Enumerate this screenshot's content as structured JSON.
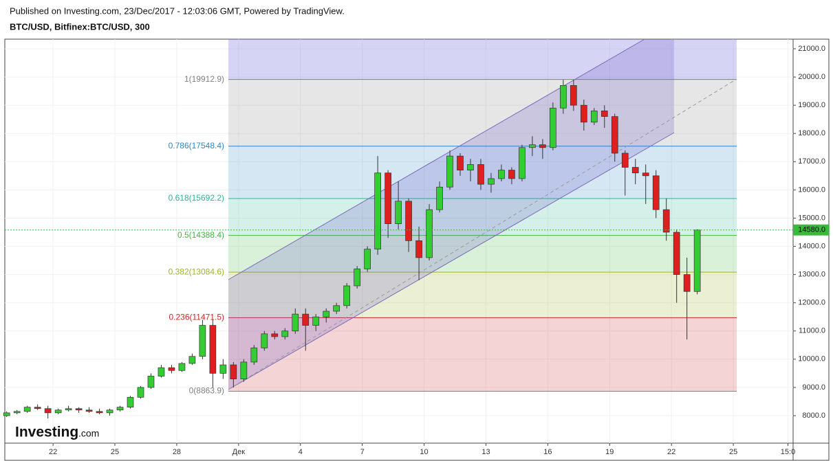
{
  "header": {
    "published": "Published on Investing.com, 23/Dec/2017 - 12:03:06 GMT, Powered by TradingView.",
    "symbol": "BTC/USD, Bitfinex:BTC/USD, 300"
  },
  "logo": {
    "brand": "Investing",
    "suffix": ".com"
  },
  "chart_data": {
    "type": "candlestick",
    "up_color": "#33cc33",
    "down_color": "#dd1f1f",
    "grid": true,
    "x": [
      19.75,
      20.25,
      20.75,
      21.25,
      21.75,
      22.25,
      22.75,
      23.25,
      23.75,
      24.25,
      24.75,
      25.25,
      25.75,
      26.25,
      26.75,
      27.25,
      27.75,
      28.25,
      28.75,
      29.25,
      29.75,
      30.25,
      30.75,
      31.25,
      31.75,
      32.25,
      32.75,
      33.25,
      33.75,
      34.25,
      34.75,
      35.25,
      35.75,
      36.25,
      36.75,
      37.25,
      37.75,
      38.25,
      38.75,
      39.25,
      39.75,
      40.25,
      40.75,
      41.25,
      41.75,
      42.25,
      42.75,
      43.25,
      43.75,
      44.25,
      44.75,
      45.25,
      45.75,
      46.25,
      46.75,
      47.25,
      47.75,
      48.25,
      48.75,
      49.25,
      49.75,
      50.25,
      50.75,
      51.25,
      51.75,
      52.25,
      52.75,
      53.25
    ],
    "open": [
      8000,
      8100,
      8150,
      8300,
      8250,
      8100,
      8200,
      8250,
      8200,
      8150,
      8100,
      8200,
      8300,
      8650,
      9000,
      9400,
      9700,
      9600,
      9850,
      10100,
      11200,
      9500,
      9800,
      9300,
      9900,
      10400,
      10900,
      10800,
      11000,
      11600,
      11200,
      11500,
      11700,
      11900,
      12600,
      13200,
      13900,
      16600,
      14800,
      15600,
      14200,
      13600,
      15300,
      16100,
      17200,
      16700,
      16900,
      16200,
      16400,
      16700,
      16400,
      17500,
      17600,
      17500,
      18900,
      19700,
      19000,
      18400,
      18800,
      18600,
      17300,
      16800,
      16600,
      16500,
      15300,
      14500,
      13000,
      12400
    ],
    "high": [
      8150,
      8200,
      8350,
      8400,
      8350,
      8250,
      8350,
      8300,
      8300,
      8250,
      8250,
      8350,
      8700,
      9050,
      9500,
      9800,
      9800,
      9900,
      10200,
      11400,
      11400,
      10000,
      9900,
      10000,
      10500,
      11000,
      11000,
      11100,
      11800,
      11800,
      11600,
      11800,
      12000,
      12700,
      13300,
      14000,
      17200,
      16700,
      16300,
      15700,
      14700,
      15500,
      16300,
      17400,
      17300,
      17100,
      17100,
      16600,
      16900,
      16800,
      17600,
      17900,
      17800,
      19100,
      19900,
      19900,
      19200,
      18900,
      19000,
      18700,
      17400,
      17100,
      16900,
      16700,
      15700,
      14600,
      13600,
      14600
    ],
    "low": [
      7950,
      8050,
      8100,
      8200,
      7900,
      8050,
      8150,
      8100,
      8100,
      8050,
      8000,
      8150,
      8250,
      8600,
      8950,
      9350,
      9500,
      9550,
      9800,
      10000,
      9000,
      9300,
      9000,
      9200,
      9800,
      10300,
      10700,
      10700,
      10900,
      10300,
      11000,
      11300,
      11600,
      11800,
      12500,
      13100,
      13700,
      14300,
      14600,
      13800,
      12800,
      13500,
      15200,
      16000,
      16500,
      16300,
      16000,
      15900,
      16300,
      16200,
      16300,
      17200,
      17100,
      17400,
      18700,
      18800,
      18100,
      18300,
      18200,
      17000,
      15800,
      16200,
      15500,
      15000,
      14200,
      12000,
      10700,
      12300
    ],
    "close": [
      8100,
      8150,
      8300,
      8250,
      8100,
      8200,
      8250,
      8200,
      8150,
      8100,
      8200,
      8300,
      8650,
      9000,
      9400,
      9700,
      9600,
      9850,
      10100,
      11200,
      9500,
      9800,
      9300,
      9900,
      10400,
      10900,
      10800,
      11000,
      11600,
      11200,
      11500,
      11700,
      11900,
      12600,
      13200,
      13900,
      16600,
      14800,
      15600,
      14200,
      13600,
      15300,
      16100,
      17200,
      16700,
      16900,
      16200,
      16400,
      16700,
      16400,
      17500,
      17600,
      17500,
      18900,
      19700,
      19000,
      18400,
      18800,
      18600,
      17300,
      16800,
      16600,
      16500,
      15300,
      14500,
      13000,
      12400,
      14580
    ],
    "xlim": [
      19.66,
      57.9
    ],
    "xticks": [
      {
        "value": 22,
        "label": "22"
      },
      {
        "value": 25,
        "label": "25"
      },
      {
        "value": 28,
        "label": "28"
      },
      {
        "value": 31,
        "label": "Дек"
      },
      {
        "value": 34,
        "label": "4"
      },
      {
        "value": 37,
        "label": "7"
      },
      {
        "value": 40,
        "label": "10"
      },
      {
        "value": 43,
        "label": "13"
      },
      {
        "value": 46,
        "label": "16"
      },
      {
        "value": 49,
        "label": "19"
      },
      {
        "value": 52,
        "label": "22"
      },
      {
        "value": 55,
        "label": "25"
      },
      {
        "value": 57.65,
        "label": "15:0"
      }
    ],
    "ylim": [
      7026,
      21341
    ],
    "yticks": [
      {
        "value": 8000,
        "label": "8000.0"
      },
      {
        "value": 9000,
        "label": "9000.0"
      },
      {
        "value": 10000,
        "label": "10000.0"
      },
      {
        "value": 11000,
        "label": "11000.0"
      },
      {
        "value": 12000,
        "label": "12000.0"
      },
      {
        "value": 13000,
        "label": "13000.0"
      },
      {
        "value": 14000,
        "label": "14000.0"
      },
      {
        "value": 15000,
        "label": "15000.0"
      },
      {
        "value": 16000,
        "label": "16000.0"
      },
      {
        "value": 17000,
        "label": "17000.0"
      },
      {
        "value": 18000,
        "label": "18000.0"
      },
      {
        "value": 19000,
        "label": "19000.0"
      },
      {
        "value": 20000,
        "label": "20000.0"
      },
      {
        "value": 21000,
        "label": "21000.0"
      }
    ],
    "last_price": {
      "value": 14580,
      "label": "14580.0",
      "color": "#3cb93c"
    },
    "fib_top_color": "#8a84e0",
    "fib_levels": [
      {
        "value": 8863.9,
        "label": "0(8863.9)",
        "color": "#808080"
      },
      {
        "value": 11471.5,
        "label": "0.236(11471.5)",
        "color": "#c62828"
      },
      {
        "value": 13084.6,
        "label": "0.382(13084.6)",
        "color": "#9bb32c"
      },
      {
        "value": 14388.4,
        "label": "0.5(14388.4)",
        "color": "#43b543"
      },
      {
        "value": 15692.2,
        "label": "0.618(15692.2)",
        "color": "#2fb38f"
      },
      {
        "value": 17548.4,
        "label": "0.786(17548.4)",
        "color": "#2e86c1"
      },
      {
        "value": 19912.9,
        "label": "1(19912.9)",
        "color": "#808080"
      }
    ]
  }
}
